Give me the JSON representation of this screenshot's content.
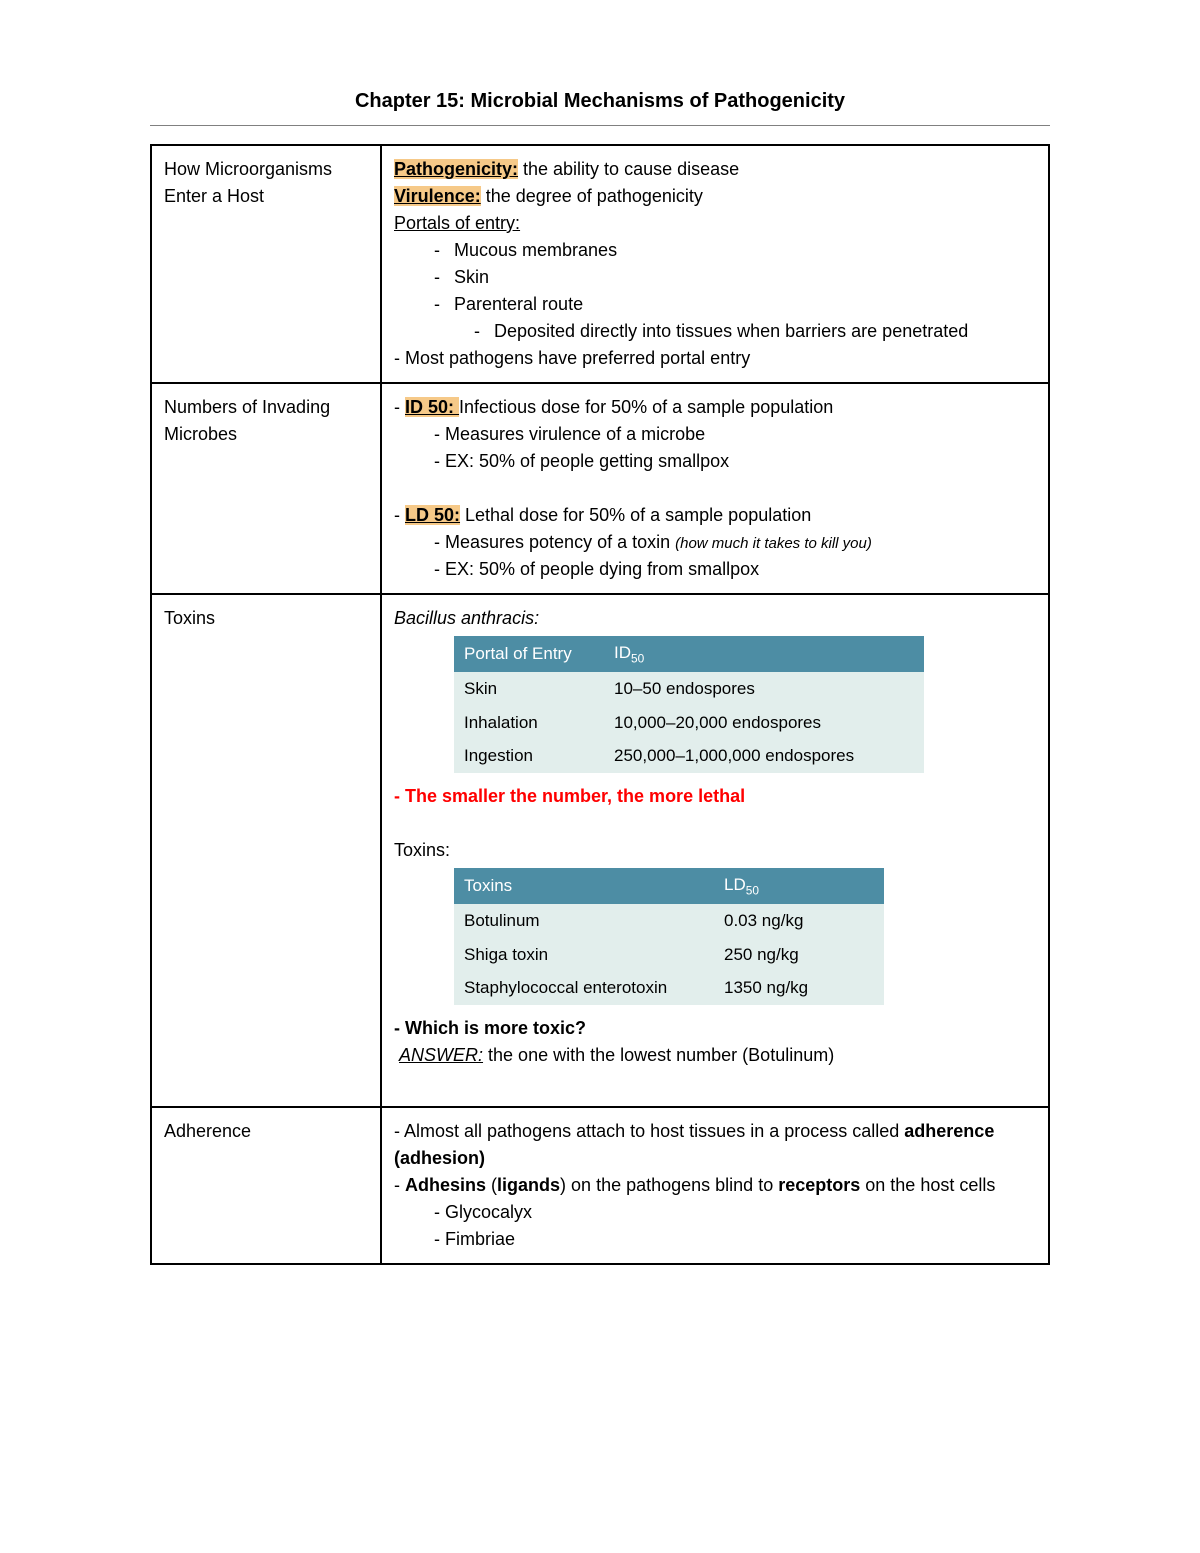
{
  "title": "Chapter 15: Microbial Mechanisms of Pathogenicity",
  "colors": {
    "highlight": "#f6c988",
    "table_header_bg": "#4d8da4",
    "table_header_fg": "#ffffff",
    "table_row_bg": "#e2eeec",
    "emphasis": "#ff0000",
    "border": "#000000",
    "rule": "#808080"
  },
  "rows": [
    {
      "left": "How Microorganisms Enter a Host",
      "content": {
        "pathogenicity_label": "Pathogenicity:",
        "pathogenicity_def": " the ability to cause disease",
        "virulence_label": "Virulence:",
        "virulence_def": " the degree of pathogenicity",
        "portals_label": "Portals of entry:",
        "portal1": "Mucous membranes",
        "portal2": "Skin",
        "portal3": "Parenteral route",
        "portal3_sub": "Deposited directly into tissues when barriers are penetrated",
        "footer": "- Most pathogens have preferred portal entry"
      }
    },
    {
      "left": "Numbers of Invading Microbes",
      "content": {
        "id50_label": "ID 50: ",
        "id50_def": "Infectious dose for 50% of a sample population",
        "id50_sub1": "- Measures virulence of a microbe",
        "id50_sub2": "- EX: 50% of people getting smallpox",
        "ld50_label": "LD 50:",
        "ld50_def": " Lethal dose for 50% of a sample population",
        "ld50_sub1": "- Measures potency of a toxin ",
        "ld50_sub1_italic": "(how much it takes to kill you)",
        "ld50_sub2": "- EX: 50% of people dying from smallpox"
      }
    },
    {
      "left": "Toxins",
      "content": {
        "bacillus": "Bacillus anthracis:",
        "portal_table": {
          "headers": [
            "Portal of Entry",
            "ID",
            "50"
          ],
          "rows": [
            [
              "Skin",
              "10–50 endospores"
            ],
            [
              "Inhalation",
              "10,000–20,000 endospores"
            ],
            [
              "Ingestion",
              "250,000–1,000,000 endospores"
            ]
          ]
        },
        "lethal_note": "- The smaller the number, the more lethal",
        "toxins_label": "Toxins:",
        "toxin_table": {
          "headers": [
            "Toxins",
            "LD",
            "50"
          ],
          "rows": [
            [
              "Botulinum",
              "0.03 ng/kg"
            ],
            [
              "Shiga toxin",
              "250 ng/kg"
            ],
            [
              "Staphylococcal enterotoxin",
              "1350 ng/kg"
            ]
          ]
        },
        "question": "- Which is more toxic?",
        "answer_label": "ANSWER:",
        "answer_text": " the one with the lowest number (Botulinum)"
      }
    },
    {
      "left": "Adherence",
      "content": {
        "line1_pre": "- Almost all pathogens attach to host tissues in a process called ",
        "line1_bold": "adherence (adhesion)",
        "line2_pre": "- ",
        "line2_b1": "Adhesins",
        "line2_mid1": " (",
        "line2_b2": "ligands",
        "line2_mid2": ") on the pathogens blind to ",
        "line2_b3": "receptors",
        "line2_post": " on the host cells",
        "sub1": "- Glycocalyx",
        "sub2": "- Fimbriae"
      }
    }
  ]
}
